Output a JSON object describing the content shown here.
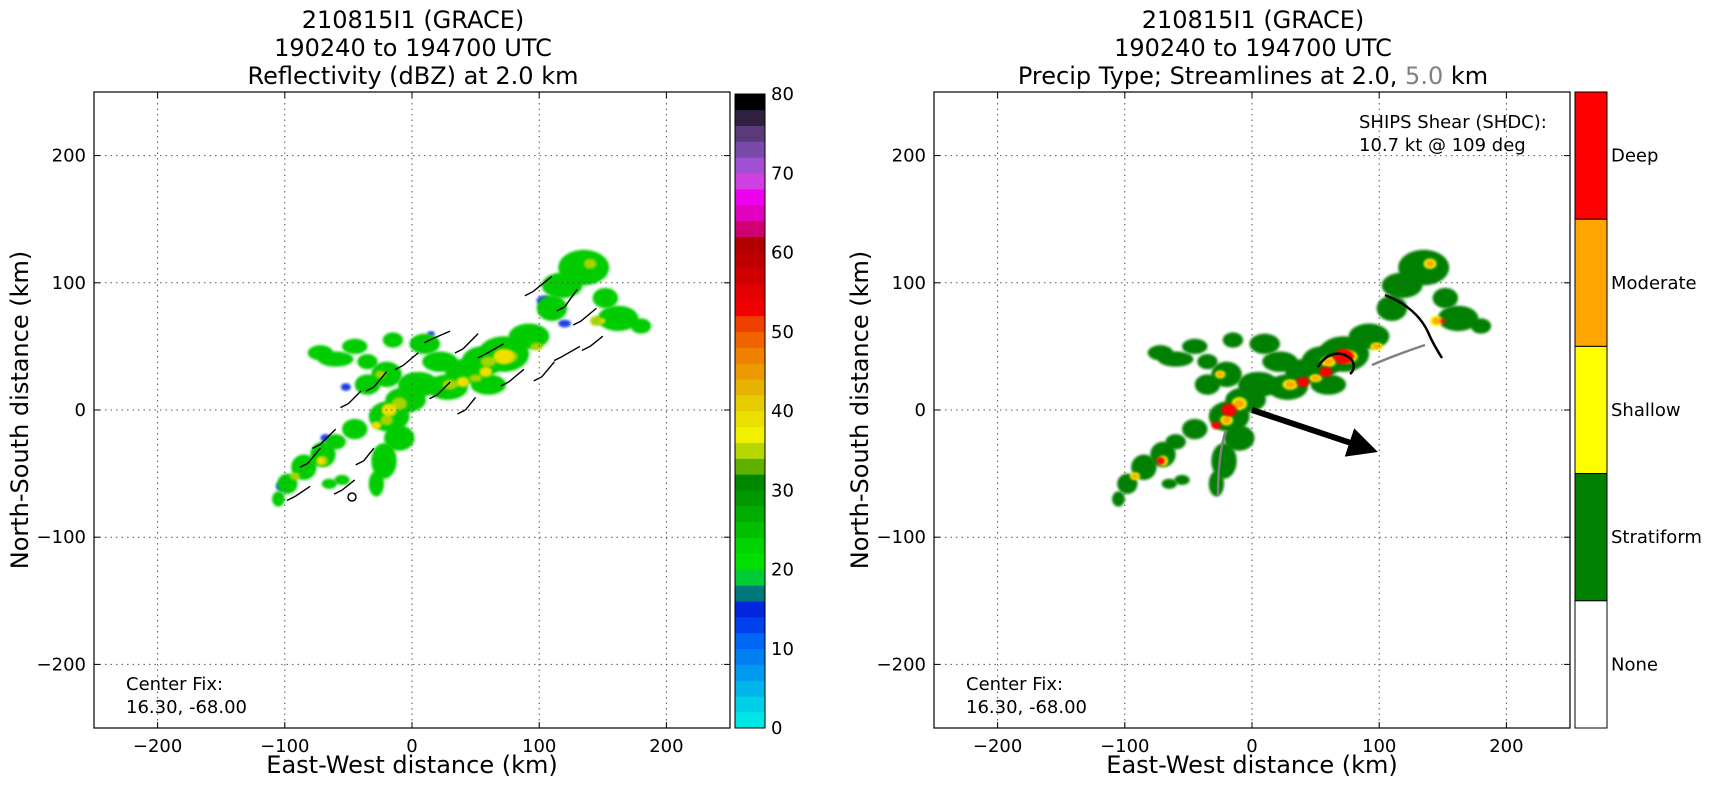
{
  "chart_data": [
    {
      "type": "heatmap",
      "title_lines": [
        "210815I1 (GRACE)",
        "190240 to 194700 UTC",
        "Reflectivity (dBZ) at 2.0 km"
      ],
      "xlabel": "East-West distance (km)",
      "ylabel": "North-South distance (km)",
      "xlim": [
        -250,
        250
      ],
      "ylim": [
        -250,
        250
      ],
      "xticks": [
        -200,
        -100,
        0,
        100,
        200
      ],
      "yticks": [
        -200,
        -100,
        0,
        100,
        200
      ],
      "grid": true,
      "center_fix_label": "Center Fix:",
      "center_fix_value": "16.30, -68.00",
      "colorbar": {
        "range": [
          0,
          80
        ],
        "ticks": [
          0,
          10,
          20,
          30,
          40,
          50,
          60,
          70,
          80
        ],
        "colors": [
          "#00e5e5",
          "#00cfe8",
          "#00b4ec",
          "#0099f0",
          "#007ff2",
          "#0066f5",
          "#0041ee",
          "#0025dd",
          "#00787a",
          "#00cc33",
          "#00e000",
          "#00d400",
          "#00c000",
          "#00ac00",
          "#009900",
          "#008700",
          "#60b000",
          "#b4d800",
          "#f0f000",
          "#ece000",
          "#e6cc00",
          "#e6b400",
          "#ec9a00",
          "#f08000",
          "#f06400",
          "#f04000",
          "#f00000",
          "#e20000",
          "#d00000",
          "#c00000",
          "#b20000",
          "#d00070",
          "#e000c0",
          "#f000f0",
          "#d040e0",
          "#a050d0",
          "#7a4aa8",
          "#5a3a7a",
          "#302040",
          "#000000"
        ]
      },
      "echo_legend": {
        "weak": "#00cc00",
        "moderate": "#a6d400",
        "strong": "#f0e000",
        "edge": "#1f3fe6"
      }
    },
    {
      "type": "heatmap",
      "title_lines": [
        "210815I1 (GRACE)",
        "190240 to 194700 UTC"
      ],
      "title_line3_prefix": "Precip Type; Streamlines at 2.0, ",
      "title_line3_gray": "5.0",
      "title_line3_suffix": " km",
      "xlabel": "East-West distance (km)",
      "ylabel": "North-South distance (km)",
      "xlim": [
        -250,
        250
      ],
      "ylim": [
        -250,
        250
      ],
      "xticks": [
        -200,
        -100,
        0,
        100,
        200
      ],
      "yticks": [
        -200,
        -100,
        0,
        100,
        200
      ],
      "grid": true,
      "shear_label": "SHIPS Shear (SHDC):",
      "shear_value": "10.7 kt @ 109 deg",
      "center_fix_label": "Center Fix:",
      "center_fix_value": "16.30, -68.00",
      "categories": [
        {
          "name": "Deep",
          "color": "#ff0000"
        },
        {
          "name": "Moderate",
          "color": "#ffa500"
        },
        {
          "name": "Shallow",
          "color": "#ffff00"
        },
        {
          "name": "Stratiform",
          "color": "#008000"
        },
        {
          "name": "None",
          "color": "#ffffff"
        }
      ],
      "shear_vector": {
        "from": [
          0,
          0
        ],
        "to": [
          90,
          -30
        ]
      }
    }
  ]
}
